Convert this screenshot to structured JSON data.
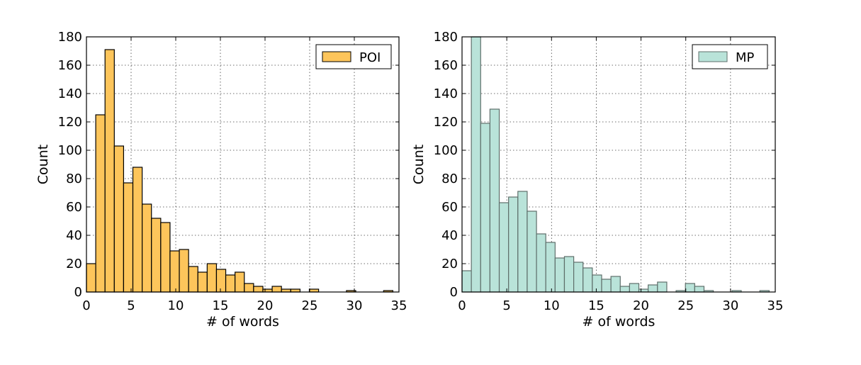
{
  "chart_data": [
    {
      "type": "bar",
      "title": "",
      "xlabel": "# of words",
      "ylabel": "Count",
      "xlim": [
        0,
        35
      ],
      "ylim": [
        0,
        180
      ],
      "xticks": [
        "0",
        "5",
        "10",
        "15",
        "20",
        "25",
        "30",
        "35"
      ],
      "yticks": [
        "0",
        "20",
        "40",
        "60",
        "80",
        "100",
        "120",
        "140",
        "160",
        "180"
      ],
      "grid": true,
      "legend_position": "top-right",
      "bin_width": 1.04,
      "bin_start": 0,
      "series": [
        {
          "name": "POI",
          "color": "#fdc55b",
          "edge_color": "#000000",
          "values": [
            20,
            125,
            171,
            103,
            77,
            88,
            62,
            52,
            49,
            29,
            30,
            18,
            14,
            20,
            16,
            12,
            14,
            6,
            4,
            2,
            4,
            2,
            2,
            0,
            2,
            0,
            0,
            0,
            1,
            0,
            0,
            0,
            1,
            0,
            0
          ]
        }
      ]
    },
    {
      "type": "bar",
      "title": "",
      "xlabel": "# of words",
      "ylabel": "Count",
      "xlim": [
        0,
        35
      ],
      "ylim": [
        0,
        180
      ],
      "xticks": [
        "0",
        "5",
        "10",
        "15",
        "20",
        "25",
        "30",
        "35"
      ],
      "yticks": [
        "0",
        "20",
        "40",
        "60",
        "80",
        "100",
        "120",
        "140",
        "160",
        "180"
      ],
      "grid": true,
      "legend_position": "top-right",
      "bin_width": 1.04,
      "bin_start": 0,
      "series": [
        {
          "name": "MP",
          "color": "#b9e3d9",
          "edge_color": "#5f6f6b",
          "values": [
            15,
            180,
            119,
            129,
            63,
            67,
            71,
            57,
            41,
            35,
            24,
            25,
            21,
            17,
            12,
            9,
            11,
            4,
            6,
            2,
            5,
            7,
            0,
            1,
            6,
            4,
            1,
            0,
            0,
            1,
            0,
            0,
            1,
            0,
            0
          ]
        }
      ]
    }
  ]
}
